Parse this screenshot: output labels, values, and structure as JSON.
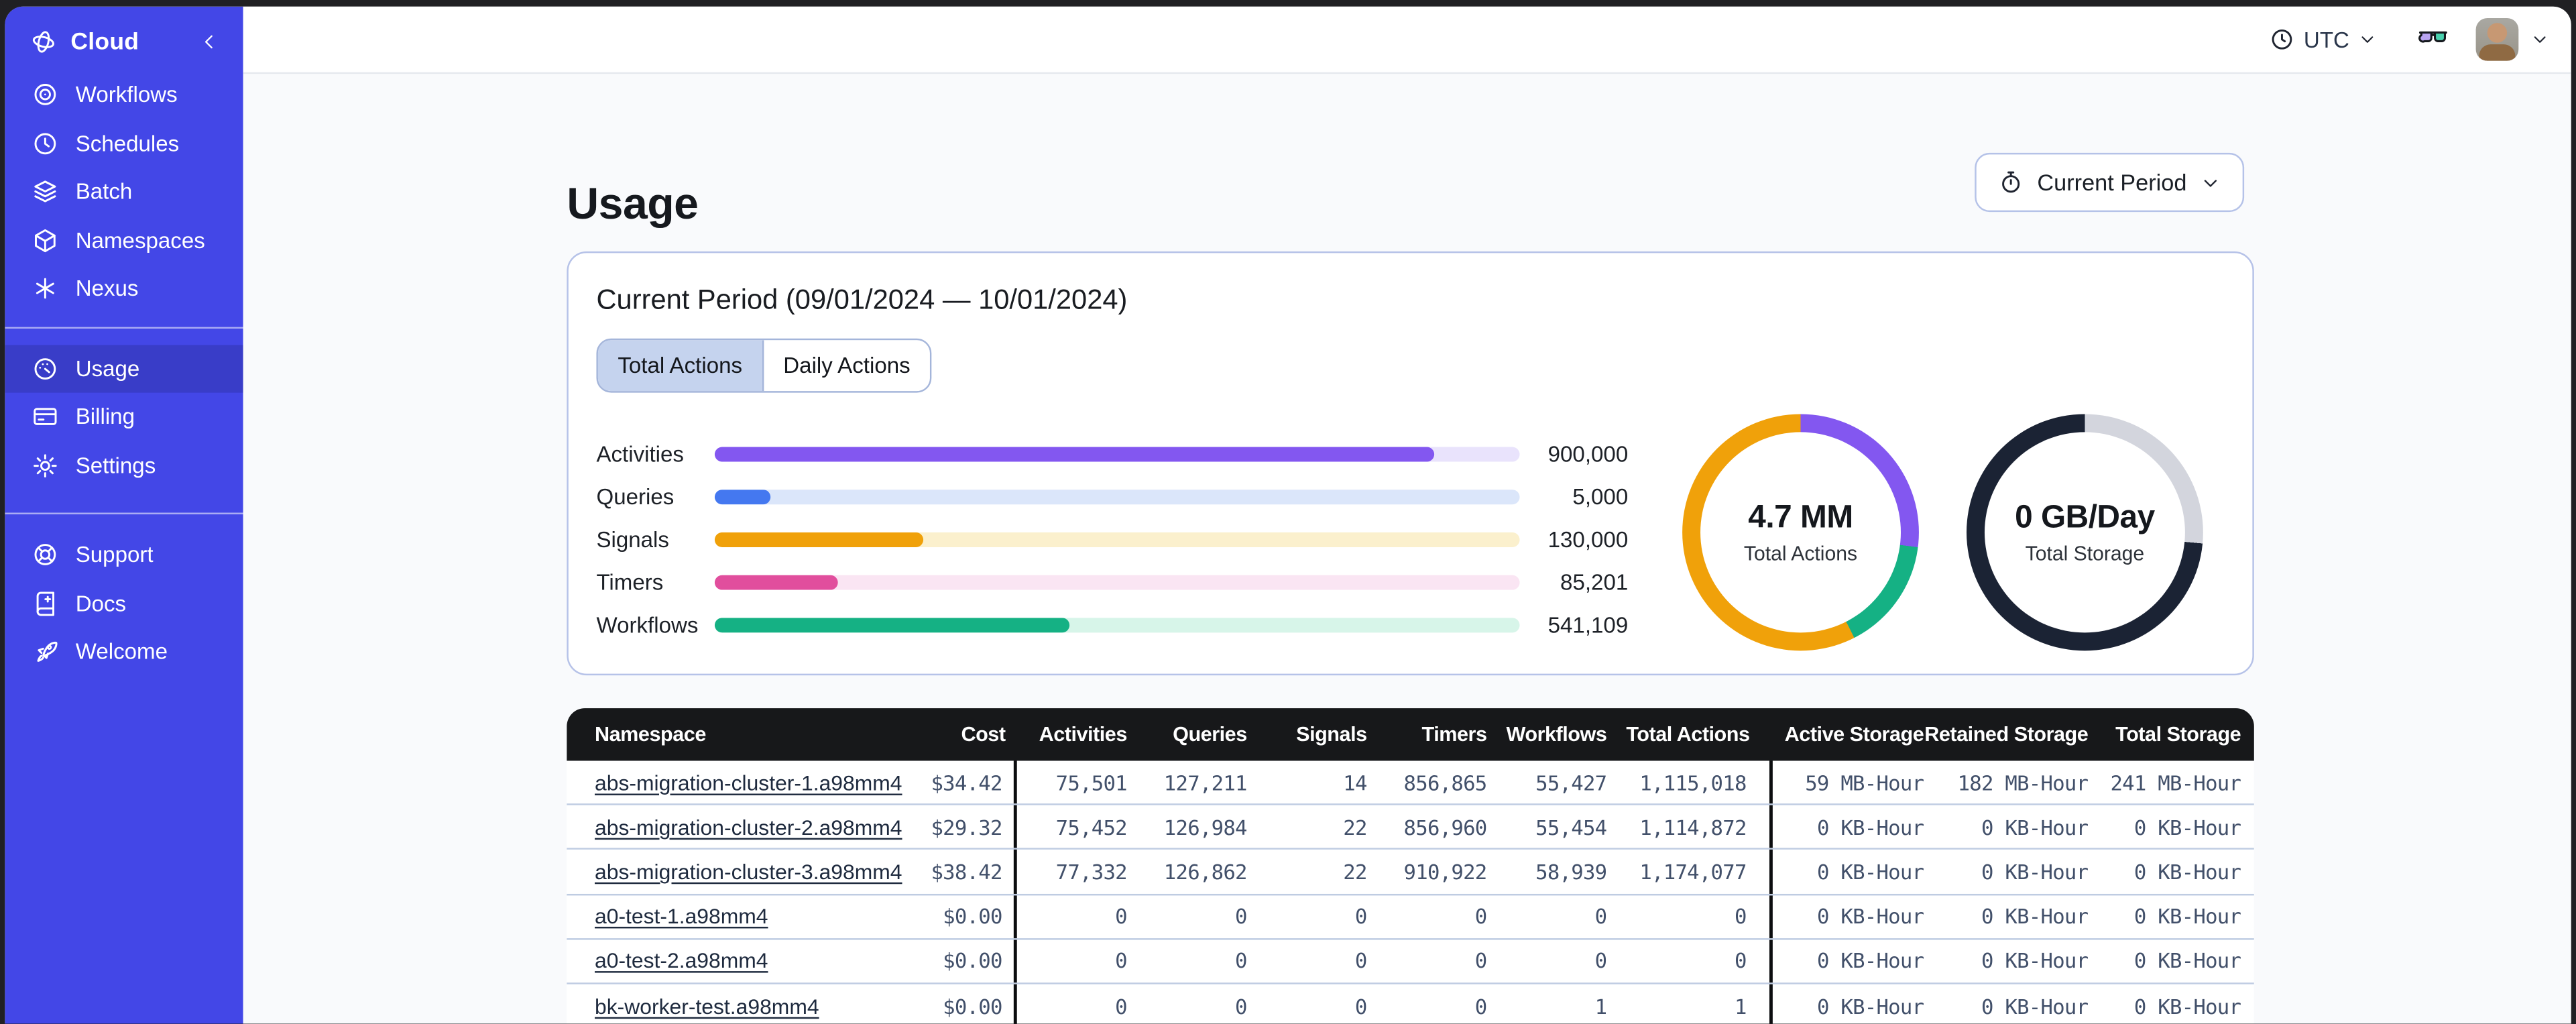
{
  "sidebar": {
    "brand": "Cloud",
    "nav_primary": [
      "Workflows",
      "Schedules",
      "Batch",
      "Namespaces",
      "Nexus"
    ],
    "nav_account": [
      "Usage",
      "Billing",
      "Settings"
    ],
    "nav_footer": [
      "Support",
      "Docs",
      "Welcome"
    ],
    "active_item": "Usage"
  },
  "topbar": {
    "timezone": "UTC"
  },
  "page": {
    "title": "Usage",
    "period_button_label": "Current Period"
  },
  "usage_card": {
    "title": "Current Period (09/01/2024 — 10/01/2024)",
    "tabs": [
      "Total Actions",
      "Daily Actions"
    ],
    "active_tab": "Total Actions"
  },
  "chart_data": [
    {
      "type": "bar",
      "orientation": "horizontal",
      "title": "Actions by type, current period",
      "categories": [
        "Activities",
        "Queries",
        "Signals",
        "Timers",
        "Workflows"
      ],
      "values": [
        900000,
        5000,
        130000,
        85201,
        541109
      ],
      "value_labels": [
        "900,000",
        "5,000",
        "130,000",
        "85,201",
        "541,109"
      ],
      "fill_pct": [
        89.4,
        7,
        26,
        15.4,
        44
      ],
      "bar_colors": [
        "#8357F0",
        "#4478F0",
        "#F0A10A",
        "#E14E9D",
        "#15B184"
      ],
      "track_colors": [
        "#E9E3FC",
        "#DBE6FA",
        "#FBF0CD",
        "#FAE5F3",
        "#D7F5E9"
      ],
      "grid": false,
      "legend": false
    },
    {
      "type": "donut",
      "center_value": "4.7 MM",
      "center_label": "Total Actions",
      "segments": [
        {
          "name": "purple",
          "color": "#8357F0",
          "pct": 27
        },
        {
          "name": "green",
          "color": "#15B184",
          "pct": 15.5
        },
        {
          "name": "orange",
          "color": "#F0A10A",
          "pct": 57.5
        }
      ]
    },
    {
      "type": "donut",
      "center_value": "0 GB/Day",
      "center_label": "Total Storage",
      "segments": [
        {
          "name": "gray",
          "color": "#D3D5DD",
          "pct": 26.5
        },
        {
          "name": "dark",
          "color": "#1B2334",
          "pct": 73.5
        }
      ]
    }
  ],
  "table": {
    "columns": [
      "Namespace",
      "Cost",
      "Activities",
      "Queries",
      "Signals",
      "Timers",
      "Workflows",
      "Total Actions",
      "Active Storage",
      "Retained Storage",
      "Total Storage"
    ],
    "rows": [
      [
        "abs-migration-cluster-1.a98mm4",
        "$34.42",
        "75,501",
        "127,211",
        "14",
        "856,865",
        "55,427",
        "1,115,018",
        "59 MB-Hour",
        "182 MB-Hour",
        "241 MB-Hour"
      ],
      [
        "abs-migration-cluster-2.a98mm4",
        "$29.32",
        "75,452",
        "126,984",
        "22",
        "856,960",
        "55,454",
        "1,114,872",
        "0 KB-Hour",
        "0 KB-Hour",
        "0 KB-Hour"
      ],
      [
        "abs-migration-cluster-3.a98mm4",
        "$38.42",
        "77,332",
        "126,862",
        "22",
        "910,922",
        "58,939",
        "1,174,077",
        "0 KB-Hour",
        "0 KB-Hour",
        "0 KB-Hour"
      ],
      [
        "a0-test-1.a98mm4",
        "$0.00",
        "0",
        "0",
        "0",
        "0",
        "0",
        "0",
        "0 KB-Hour",
        "0 KB-Hour",
        "0 KB-Hour"
      ],
      [
        "a0-test-2.a98mm4",
        "$0.00",
        "0",
        "0",
        "0",
        "0",
        "0",
        "0",
        "0 KB-Hour",
        "0 KB-Hour",
        "0 KB-Hour"
      ],
      [
        "bk-worker-test.a98mm4",
        "$0.00",
        "0",
        "0",
        "0",
        "0",
        "1",
        "1",
        "0 KB-Hour",
        "0 KB-Hour",
        "0 KB-Hour"
      ]
    ]
  },
  "colors": {
    "sidebar_bg": "#4347E7",
    "sidebar_active_bg": "#393DC8",
    "table_header_bg": "#17181A",
    "card_border": "#B6C2E8",
    "tab_active_bg": "#C5D3EE",
    "glasses_left_lens": "#B9A4F2",
    "glasses_right_lens": "#49D1AE"
  }
}
